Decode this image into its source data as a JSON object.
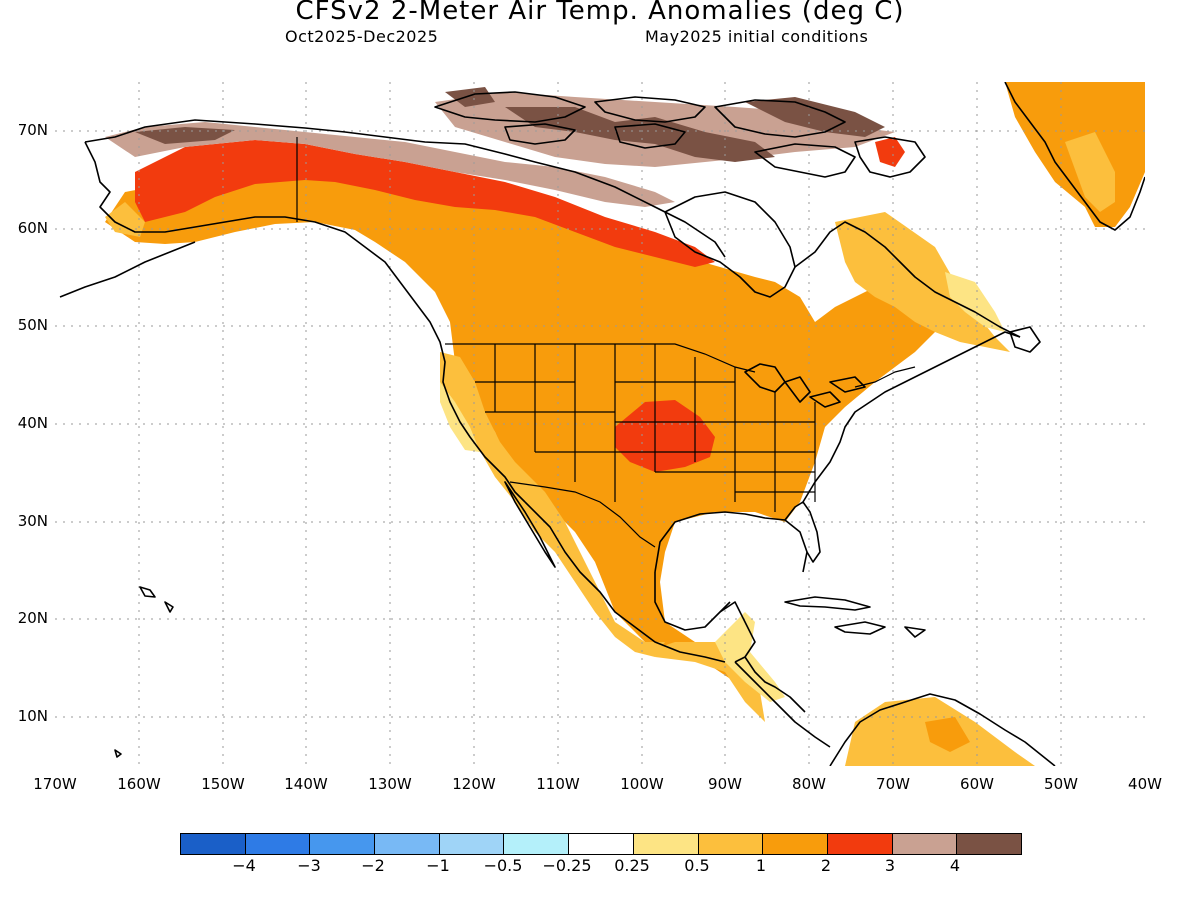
{
  "header": {
    "title": "CFSv2 2-Meter Air Temp. Anomalies (deg C)",
    "period": "Oct2025-Dec2025",
    "initial_conditions": "May2025 initial conditions"
  },
  "axes": {
    "lat_labels": [
      "70N",
      "60N",
      "50N",
      "40N",
      "30N",
      "20N",
      "10N"
    ],
    "lon_labels": [
      "170W",
      "160W",
      "150W",
      "140W",
      "130W",
      "120W",
      "110W",
      "100W",
      "90W",
      "80W",
      "70W",
      "60W",
      "50W",
      "40W"
    ]
  },
  "colorbar": {
    "colors": [
      "#1a5fc8",
      "#2e7be6",
      "#4697ee",
      "#78b9f5",
      "#9fd4f7",
      "#b4f0fa",
      "#ffffff",
      "#fde484",
      "#fcbf3d",
      "#f89c0c",
      "#f23b0e",
      "#c9a192",
      "#7a5244"
    ],
    "labels": [
      "−4",
      "−3",
      "−2",
      "−1",
      "−0.5",
      "−0.25",
      "0.25",
      "0.5",
      "1",
      "2",
      "3",
      "4"
    ]
  },
  "legend_map": {
    "light_orange": "#fcbf3d",
    "orange": "#f89c0c",
    "red": "#f23b0e",
    "pale_brown": "#c9a192",
    "dark_brown": "#7a5244",
    "yellow": "#fde484"
  }
}
